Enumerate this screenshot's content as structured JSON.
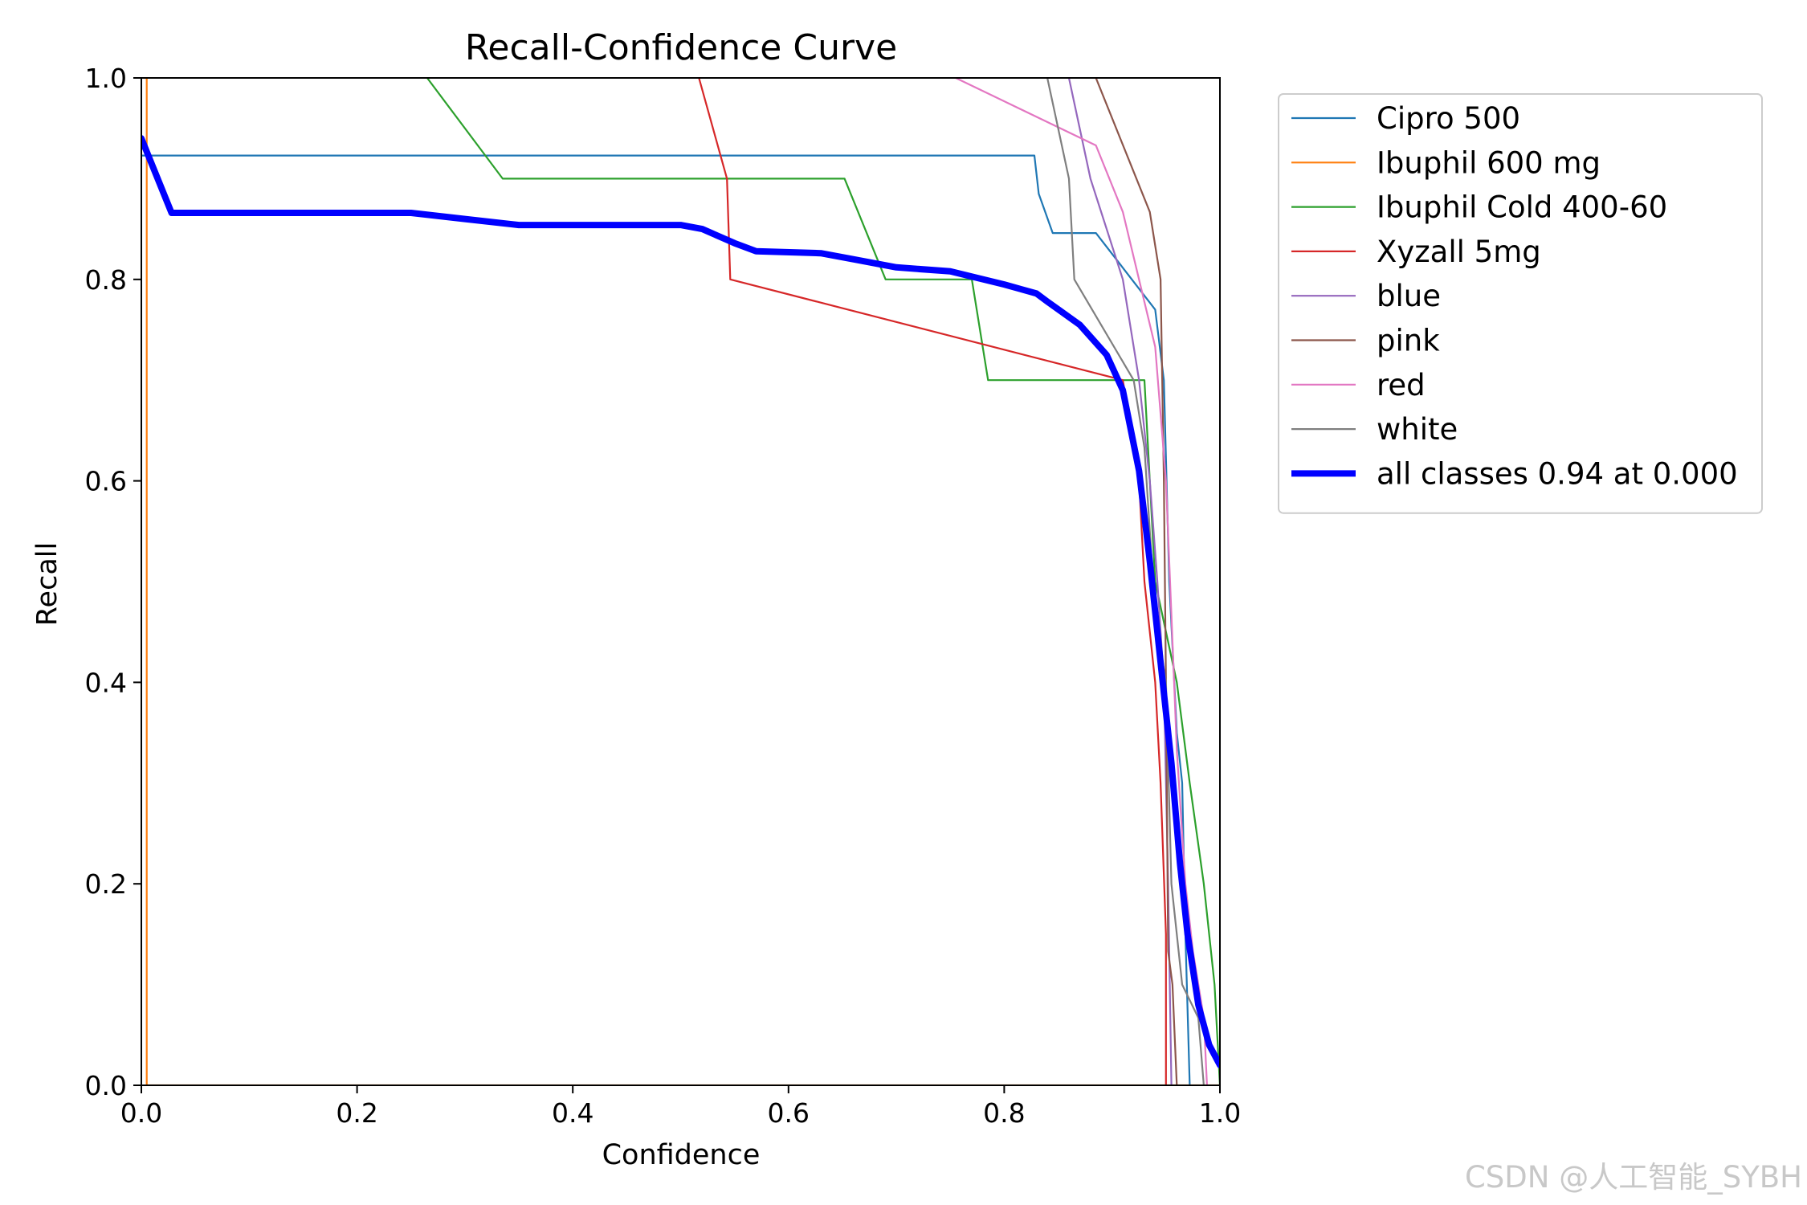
{
  "chart_data": {
    "type": "line",
    "title": "Recall-Confidence Curve",
    "xlabel": "Confidence",
    "ylabel": "Recall",
    "xlim": [
      0,
      1
    ],
    "ylim": [
      0,
      1
    ],
    "xticks": [
      "0.0",
      "0.2",
      "0.4",
      "0.6",
      "0.8",
      "1.0"
    ],
    "yticks": [
      "0.0",
      "0.2",
      "0.4",
      "0.6",
      "0.8",
      "1.0"
    ],
    "grid": false,
    "legend_position": "outside-right",
    "series": [
      {
        "name": "Cipro 500",
        "color": "#1f77b4",
        "width": "thin",
        "points": [
          [
            0,
            0.923
          ],
          [
            0.002,
            0.923
          ],
          [
            0.828,
            0.923
          ],
          [
            0.832,
            0.885
          ],
          [
            0.845,
            0.846
          ],
          [
            0.885,
            0.846
          ],
          [
            0.94,
            0.77
          ],
          [
            0.948,
            0.7
          ],
          [
            0.953,
            0.5
          ],
          [
            0.96,
            0.35
          ],
          [
            0.965,
            0.3
          ],
          [
            0.968,
            0.15
          ],
          [
            0.972,
            0
          ]
        ]
      },
      {
        "name": "Ibuphil 600 mg",
        "color": "#ff7f0e",
        "width": "thin",
        "points": [
          [
            0.002,
            1
          ],
          [
            0.005,
            1
          ],
          [
            0.005,
            0
          ],
          [
            1,
            0
          ]
        ]
      },
      {
        "name": "Ibuphil Cold 400-60",
        "color": "#2ca02c",
        "width": "thin",
        "points": [
          [
            0.265,
            1
          ],
          [
            0.335,
            0.9
          ],
          [
            0.652,
            0.9
          ],
          [
            0.69,
            0.8
          ],
          [
            0.77,
            0.8
          ],
          [
            0.785,
            0.7
          ],
          [
            0.93,
            0.7
          ],
          [
            0.935,
            0.6
          ],
          [
            0.94,
            0.5
          ],
          [
            0.96,
            0.4
          ],
          [
            0.972,
            0.3
          ],
          [
            0.985,
            0.2
          ],
          [
            0.995,
            0.1
          ],
          [
            1,
            0
          ]
        ]
      },
      {
        "name": "Xyzall 5mg",
        "color": "#d62728",
        "width": "thin",
        "points": [
          [
            0.517,
            1
          ],
          [
            0.543,
            0.9
          ],
          [
            0.546,
            0.8
          ],
          [
            0.91,
            0.7
          ],
          [
            0.925,
            0.6
          ],
          [
            0.93,
            0.5
          ],
          [
            0.94,
            0.4
          ],
          [
            0.945,
            0.3
          ],
          [
            0.95,
            0.15
          ],
          [
            0.95,
            0
          ]
        ]
      },
      {
        "name": "blue",
        "color": "#9467bd",
        "width": "thin",
        "points": [
          [
            0.86,
            1
          ],
          [
            0.88,
            0.9
          ],
          [
            0.91,
            0.8
          ],
          [
            0.925,
            0.7
          ],
          [
            0.935,
            0.6
          ],
          [
            0.942,
            0.5
          ],
          [
            0.948,
            0.4
          ],
          [
            0.952,
            0.2
          ],
          [
            0.955,
            0
          ]
        ]
      },
      {
        "name": "pink",
        "color": "#8c564b",
        "width": "thin",
        "points": [
          [
            0.885,
            1
          ],
          [
            0.935,
            0.867
          ],
          [
            0.945,
            0.8
          ],
          [
            0.948,
            0.6
          ],
          [
            0.95,
            0.4
          ],
          [
            0.952,
            0.133
          ],
          [
            0.956,
            0.1
          ],
          [
            0.96,
            0
          ]
        ]
      },
      {
        "name": "red",
        "color": "#e377c2",
        "width": "thin",
        "points": [
          [
            0.755,
            1
          ],
          [
            0.885,
            0.933
          ],
          [
            0.91,
            0.867
          ],
          [
            0.94,
            0.733
          ],
          [
            0.95,
            0.6
          ],
          [
            0.955,
            0.467
          ],
          [
            0.96,
            0.333
          ],
          [
            0.968,
            0.2
          ],
          [
            0.975,
            0.133
          ],
          [
            0.985,
            0.067
          ],
          [
            0.988,
            0
          ]
        ]
      },
      {
        "name": "white",
        "color": "#7f7f7f",
        "width": "thin",
        "points": [
          [
            0.84,
            1
          ],
          [
            0.86,
            0.9
          ],
          [
            0.865,
            0.8
          ],
          [
            0.92,
            0.7
          ],
          [
            0.93,
            0.633
          ],
          [
            0.94,
            0.467
          ],
          [
            0.95,
            0.4
          ],
          [
            0.955,
            0.2
          ],
          [
            0.965,
            0.1
          ],
          [
            0.98,
            0.067
          ],
          [
            0.985,
            0
          ]
        ]
      },
      {
        "name": "all classes 0.94 at 0.000",
        "color": "#0000ff",
        "width": "thick",
        "points": [
          [
            0,
            0.94
          ],
          [
            0.028,
            0.866
          ],
          [
            0.05,
            0.866
          ],
          [
            0.25,
            0.866
          ],
          [
            0.3,
            0.86
          ],
          [
            0.35,
            0.854
          ],
          [
            0.5,
            0.854
          ],
          [
            0.52,
            0.85
          ],
          [
            0.55,
            0.836
          ],
          [
            0.57,
            0.828
          ],
          [
            0.63,
            0.826
          ],
          [
            0.66,
            0.82
          ],
          [
            0.7,
            0.812
          ],
          [
            0.75,
            0.808
          ],
          [
            0.8,
            0.795
          ],
          [
            0.83,
            0.786
          ],
          [
            0.84,
            0.778
          ],
          [
            0.87,
            0.755
          ],
          [
            0.895,
            0.725
          ],
          [
            0.91,
            0.69
          ],
          [
            0.925,
            0.61
          ],
          [
            0.935,
            0.52
          ],
          [
            0.945,
            0.42
          ],
          [
            0.955,
            0.32
          ],
          [
            0.963,
            0.22
          ],
          [
            0.97,
            0.15
          ],
          [
            0.98,
            0.08
          ],
          [
            0.99,
            0.04
          ],
          [
            1,
            0.02
          ]
        ]
      }
    ]
  },
  "watermark": "CSDN @人工智能_SYBH"
}
